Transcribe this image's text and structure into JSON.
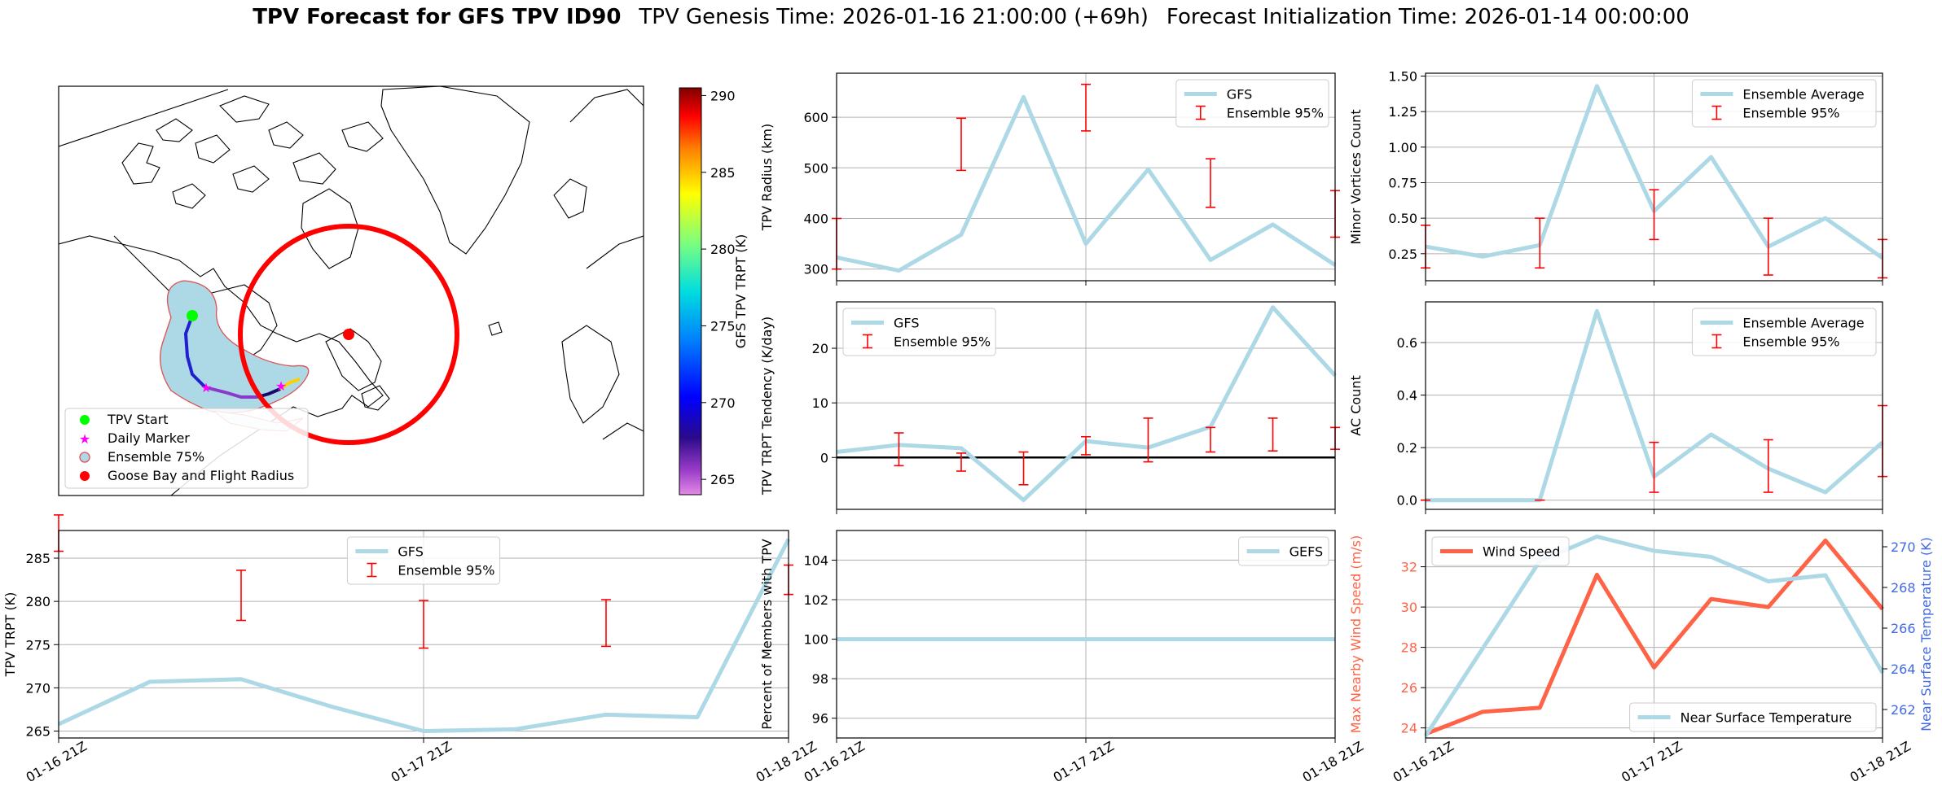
{
  "header": {
    "title_bold": "TPV Forecast for GFS TPV ID90",
    "genesis": "TPV Genesis Time: 2026-01-16 21:00:00 (+69h)",
    "init": "Forecast Initialization Time: 2026-01-14 00:00:00"
  },
  "colors": {
    "gfs_line": "#add8e6",
    "ensemble": "#ff0000",
    "wind": "#ff6347",
    "temp_axis": "#4169e1",
    "start_marker": "#00ff00",
    "daily_marker": "#ff00ff",
    "goose_bay": "#ff0000"
  },
  "map": {
    "colorbar": {
      "label": "GFS TPV TRPT (K)",
      "ticks": [
        "290",
        "285",
        "280",
        "275",
        "270",
        "265"
      ],
      "range": [
        264,
        290.5
      ]
    },
    "legend": [
      {
        "label": "TPV Start",
        "icon": "green-circle"
      },
      {
        "label": "Daily Marker",
        "icon": "magenta-star"
      },
      {
        "label": "Ensemble 75%",
        "icon": "light-blue-circle"
      },
      {
        "label": "Goose Bay and Flight Radius",
        "icon": "red-circle"
      }
    ]
  },
  "chart_data": [
    {
      "id": "radius",
      "type": "line",
      "ylabel": "TPV Radius (km)",
      "ylim": [
        277,
        687
      ],
      "yticks": [
        300,
        400,
        500,
        600
      ],
      "xtick_labels": [],
      "legend": [
        "GFS",
        "Ensemble 95%"
      ],
      "legend_pos": "top-right",
      "series": [
        {
          "name": "GFS",
          "values": [
            323,
            297,
            368,
            640,
            350,
            497,
            318,
            388,
            308
          ]
        }
      ],
      "errorbars": [
        {
          "x": 0,
          "low": 300,
          "high": 400
        },
        {
          "x": 2,
          "low": 495,
          "high": 598
        },
        {
          "x": 4,
          "low": 573,
          "high": 665
        },
        {
          "x": 6,
          "low": 422,
          "high": 518
        },
        {
          "x": 8,
          "low": 363,
          "high": 455
        }
      ]
    },
    {
      "id": "minor_vortices",
      "type": "line",
      "ylabel": "Minor Vortices Count",
      "ylim": [
        0.06,
        1.52
      ],
      "yticks": [
        0.25,
        0.5,
        0.75,
        1.0,
        1.25,
        1.5
      ],
      "ytick_labels": [
        "0.25",
        "0.50",
        "0.75",
        "1.00",
        "1.25",
        "1.50"
      ],
      "xtick_labels": [],
      "legend": [
        "Ensemble Average",
        "Ensemble 95%"
      ],
      "legend_pos": "top-right",
      "series": [
        {
          "name": "Ensemble Average",
          "values": [
            0.3,
            0.23,
            0.31,
            1.43,
            0.55,
            0.93,
            0.3,
            0.5,
            0.22
          ]
        }
      ],
      "errorbars": [
        {
          "x": 0,
          "low": 0.15,
          "high": 0.45
        },
        {
          "x": 2,
          "low": 0.15,
          "high": 0.5
        },
        {
          "x": 4,
          "low": 0.35,
          "high": 0.7
        },
        {
          "x": 6,
          "low": 0.1,
          "high": 0.5
        },
        {
          "x": 8,
          "low": 0.08,
          "high": 0.35
        }
      ]
    },
    {
      "id": "tendency",
      "type": "line",
      "ylabel": "TPV TRPT Tendency (K/day)",
      "ylim": [
        -9.5,
        28.5
      ],
      "yticks": [
        0,
        10,
        20
      ],
      "xtick_labels": [],
      "zero_line": true,
      "legend": [
        "GFS",
        "Ensemble 95%"
      ],
      "legend_pos": "top-left",
      "series": [
        {
          "name": "GFS",
          "values": [
            1.0,
            2.3,
            1.7,
            -7.8,
            3.0,
            1.8,
            5.6,
            27.5,
            15.0
          ]
        }
      ],
      "errorbars": [
        {
          "x": 1,
          "low": -1.5,
          "high": 4.5
        },
        {
          "x": 2,
          "low": -2.5,
          "high": 0.8
        },
        {
          "x": 3,
          "low": -5.0,
          "high": 1.0
        },
        {
          "x": 4,
          "low": 0.5,
          "high": 3.8
        },
        {
          "x": 5,
          "low": -0.8,
          "high": 7.2
        },
        {
          "x": 6,
          "low": 1.0,
          "high": 5.5
        },
        {
          "x": 7,
          "low": 1.2,
          "high": 7.2
        },
        {
          "x": 8,
          "low": 1.5,
          "high": 5.5
        }
      ]
    },
    {
      "id": "ac_count",
      "type": "line",
      "ylabel": "AC Count",
      "ylim": [
        -0.035,
        0.755
      ],
      "yticks": [
        0.0,
        0.2,
        0.4,
        0.6
      ],
      "ytick_labels": [
        "0.0",
        "0.2",
        "0.4",
        "0.6"
      ],
      "xtick_labels": [],
      "legend": [
        "Ensemble Average",
        "Ensemble 95%"
      ],
      "legend_pos": "top-right",
      "series": [
        {
          "name": "Ensemble Average",
          "values": [
            0.0,
            0.0,
            0.0,
            0.72,
            0.09,
            0.25,
            0.12,
            0.03,
            0.22
          ]
        }
      ],
      "errorbars": [
        {
          "x": 0,
          "low": 0.0,
          "high": 0.0
        },
        {
          "x": 2,
          "low": 0.0,
          "high": 0.0
        },
        {
          "x": 4,
          "low": 0.03,
          "high": 0.22
        },
        {
          "x": 6,
          "low": 0.03,
          "high": 0.23
        },
        {
          "x": 8,
          "low": 0.09,
          "high": 0.36
        }
      ]
    },
    {
      "id": "trpt",
      "type": "line",
      "ylabel": "TPV TRPT (K)",
      "ylim": [
        264.2,
        288.2
      ],
      "yticks": [
        265,
        270,
        275,
        280,
        285
      ],
      "xtick_labels": [
        "01-16 21Z",
        "01-17 21Z",
        "01-18 21Z"
      ],
      "legend": [
        "GFS",
        "Ensemble 95%"
      ],
      "legend_pos": "top-center",
      "series": [
        {
          "name": "GFS",
          "values": [
            265.8,
            270.7,
            271.0,
            267.8,
            265.0,
            265.2,
            266.9,
            266.6,
            287.2
          ]
        }
      ],
      "errorbars": [
        {
          "x": 0,
          "low": 285.8,
          "high": 290.0
        },
        {
          "x": 2,
          "low": 277.8,
          "high": 283.6
        },
        {
          "x": 4,
          "low": 274.6,
          "high": 280.1
        },
        {
          "x": 6,
          "low": 274.8,
          "high": 280.2
        },
        {
          "x": 8,
          "low": 280.8,
          "high": 284.2
        }
      ]
    },
    {
      "id": "percent",
      "type": "line",
      "ylabel": "Percent of Members with TPV",
      "ylim": [
        95.0,
        105.5
      ],
      "yticks": [
        96,
        98,
        100,
        102,
        104
      ],
      "xtick_labels": [
        "01-16 21Z",
        "01-17 21Z",
        "01-18 21Z"
      ],
      "legend": [
        "GEFS"
      ],
      "legend_pos": "top-right",
      "series": [
        {
          "name": "GEFS",
          "values": [
            100,
            100,
            100,
            100,
            100,
            100,
            100,
            100,
            100
          ]
        }
      ],
      "errorbars": []
    },
    {
      "id": "wind_temp",
      "type": "line",
      "ylabel": "Max Nearby Wind Speed (m/s)",
      "ylabel_right": "Near Surface Temperature (K)",
      "ylim": [
        23.5,
        33.8
      ],
      "yticks": [
        24,
        26,
        28,
        30,
        32
      ],
      "ylim_right": [
        260.6,
        270.8
      ],
      "yticks_right": [
        262,
        264,
        266,
        268,
        270
      ],
      "xtick_labels": [
        "01-16 21Z",
        "01-17 21Z",
        "01-18 21Z"
      ],
      "legend": [
        "Wind Speed"
      ],
      "legend_right": [
        "Near Surface Temperature"
      ],
      "series": [
        {
          "name": "Wind Speed",
          "values": [
            23.7,
            24.8,
            25.0,
            31.6,
            27.0,
            30.4,
            30.0,
            33.3,
            29.9
          ],
          "axis": "left"
        },
        {
          "name": "Near Surface Temperature",
          "values": [
            260.7,
            265.0,
            269.3,
            270.5,
            269.8,
            269.5,
            268.3,
            268.6,
            263.8
          ],
          "axis": "right"
        }
      ],
      "errorbars": []
    }
  ]
}
